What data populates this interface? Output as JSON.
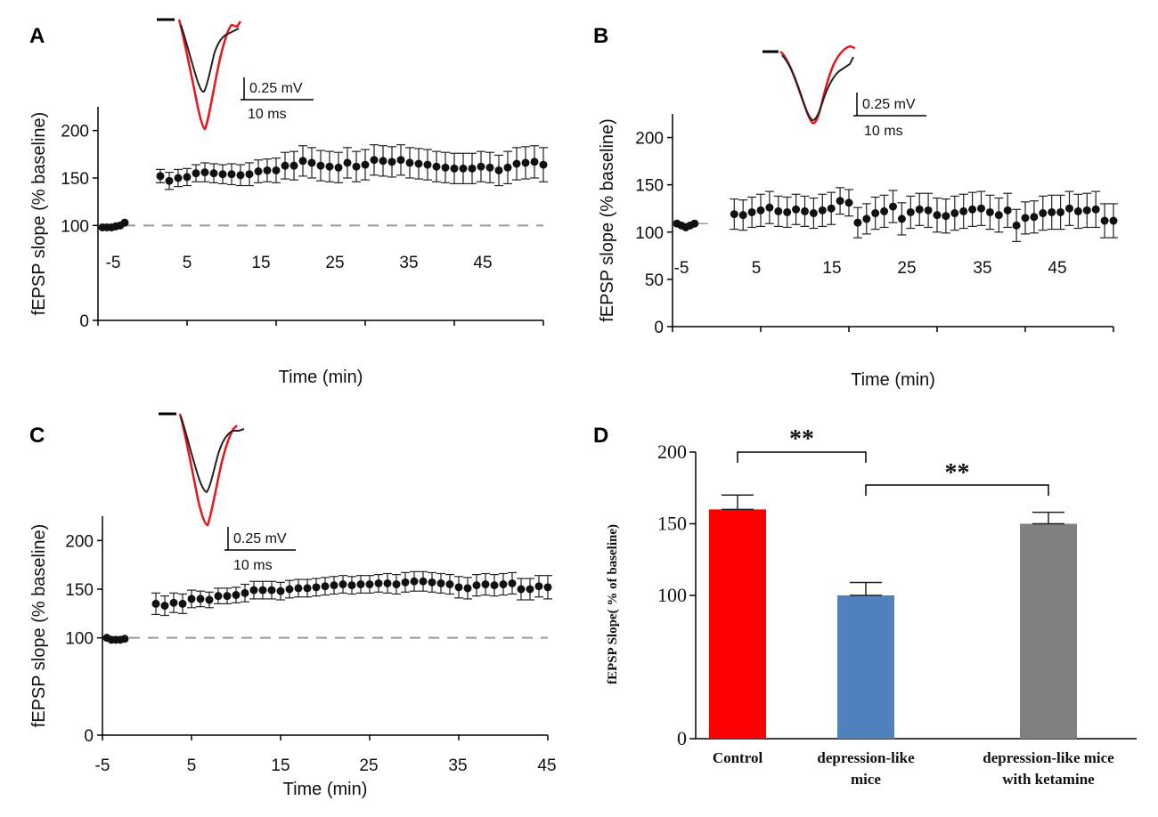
{
  "panels": {
    "A": "A",
    "B": "B",
    "C": "C",
    "D": "D"
  },
  "scale_bar": {
    "voltage": "0.25 mV",
    "time": "10 ms"
  },
  "trace_colors": {
    "pre": "#222222",
    "post": "#e8141c"
  },
  "chart_data": [
    {
      "panel": "A",
      "type": "scatter",
      "xlabel": "Time (min)",
      "ylabel": "fEPSP slope (% baseline)",
      "xlim": [
        -5,
        45
      ],
      "ylim": [
        0,
        225
      ],
      "xticks": [
        "-5",
        "5",
        "15",
        "25",
        "35",
        "45"
      ],
      "yticks": [
        "0",
        "100",
        "150",
        "200"
      ],
      "baseline_line": 100,
      "series": [
        {
          "name": "pre",
          "x": [
            -4.5,
            -4.0,
            -3.5,
            -3.0,
            -2.5,
            -2.0
          ],
          "y": [
            98,
            98,
            98,
            99,
            100,
            103
          ],
          "err": [
            0,
            0,
            0,
            0,
            0,
            0
          ]
        },
        {
          "name": "post",
          "x": [
            2,
            3,
            4,
            5,
            6,
            7,
            8,
            9,
            10,
            11,
            12,
            13,
            14,
            15,
            16,
            17,
            18,
            19,
            20,
            21,
            22,
            23,
            24,
            25,
            26,
            27,
            28,
            29,
            30,
            31,
            32,
            33,
            34,
            35,
            36,
            37,
            38,
            39,
            40,
            41,
            42,
            43,
            44,
            45
          ],
          "y": [
            152,
            147,
            150,
            151,
            155,
            156,
            155,
            154,
            154,
            153,
            154,
            157,
            158,
            158,
            163,
            163,
            168,
            166,
            163,
            162,
            161,
            166,
            162,
            164,
            169,
            168,
            167,
            169,
            166,
            165,
            164,
            162,
            161,
            160,
            160,
            160,
            162,
            161,
            158,
            161,
            165,
            166,
            167,
            164
          ],
          "err": [
            7,
            9,
            9,
            9,
            9,
            10,
            10,
            10,
            11,
            11,
            12,
            12,
            12,
            13,
            14,
            15,
            16,
            16,
            16,
            16,
            16,
            16,
            16,
            16,
            16,
            16,
            16,
            16,
            16,
            16,
            16,
            16,
            16,
            16,
            16,
            16,
            16,
            16,
            16,
            17,
            17,
            17,
            17,
            18
          ]
        }
      ]
    },
    {
      "panel": "B",
      "type": "scatter",
      "xlabel": "Time (min)",
      "ylabel": "fEPSP slope (% baseline)",
      "xlim": [
        -5,
        45
      ],
      "ylim": [
        0,
        225
      ],
      "xticks": [
        "-5",
        "5",
        "15",
        "25",
        "35",
        "45"
      ],
      "yticks": [
        "0",
        "50",
        "100",
        "150",
        "200"
      ],
      "baseline_line": 109,
      "series": [
        {
          "name": "pre",
          "x": [
            -4.5,
            -4.0,
            -3.5,
            -3.0,
            -2.5
          ],
          "y": [
            109,
            107,
            105,
            107,
            109
          ],
          "err": [
            0,
            0,
            0,
            0,
            0
          ]
        },
        {
          "name": "post",
          "x": [
            2,
            3,
            4,
            5,
            6,
            7,
            8,
            9,
            10,
            11,
            12,
            13,
            14,
            15,
            16,
            17,
            18,
            19,
            20,
            21,
            22,
            23,
            24,
            25,
            26,
            27,
            28,
            29,
            30,
            31,
            32,
            33,
            34,
            35,
            36,
            37,
            38,
            39,
            40,
            41,
            42,
            43,
            44,
            45
          ],
          "y": [
            119,
            118,
            121,
            123,
            126,
            122,
            121,
            124,
            122,
            120,
            123,
            125,
            133,
            131,
            110,
            114,
            120,
            122,
            127,
            114,
            121,
            124,
            123,
            118,
            117,
            120,
            122,
            124,
            125,
            121,
            118,
            123,
            107,
            115,
            116,
            120,
            121,
            121,
            125,
            122,
            123,
            124,
            112,
            112
          ],
          "err": [
            16,
            16,
            16,
            17,
            17,
            16,
            16,
            16,
            16,
            16,
            17,
            17,
            14,
            14,
            16,
            16,
            17,
            17,
            17,
            17,
            17,
            17,
            18,
            18,
            18,
            18,
            18,
            18,
            18,
            18,
            18,
            18,
            17,
            17,
            17,
            18,
            18,
            18,
            18,
            18,
            18,
            19,
            18,
            18
          ]
        }
      ]
    },
    {
      "panel": "C",
      "type": "scatter",
      "xlabel": "Time (min)",
      "ylabel": "fEPSP slope (% baseline)",
      "xlim": [
        -5,
        45
      ],
      "ylim": [
        0,
        225
      ],
      "xticks": [
        "-5",
        "5",
        "15",
        "25",
        "35",
        "45"
      ],
      "yticks": [
        "0",
        "100",
        "150",
        "200"
      ],
      "baseline_line": 100,
      "series": [
        {
          "name": "pre",
          "x": [
            -4.5,
            -4.0,
            -3.5,
            -3.0,
            -2.5
          ],
          "y": [
            100,
            98,
            98,
            98,
            99
          ],
          "err": [
            0,
            0,
            0,
            0,
            0
          ]
        },
        {
          "name": "post",
          "x": [
            1,
            2,
            3,
            4,
            5,
            6,
            7,
            8,
            9,
            10,
            11,
            12,
            13,
            14,
            15,
            16,
            17,
            18,
            19,
            20,
            21,
            22,
            23,
            24,
            25,
            26,
            27,
            28,
            29,
            30,
            31,
            32,
            33,
            34,
            35,
            36,
            37,
            38,
            39,
            40,
            41,
            42,
            43,
            44,
            45
          ],
          "y": [
            135,
            133,
            136,
            135,
            140,
            140,
            139,
            143,
            143,
            144,
            146,
            149,
            149,
            149,
            148,
            150,
            151,
            151,
            152,
            153,
            154,
            155,
            154,
            155,
            155,
            156,
            156,
            155,
            157,
            158,
            158,
            157,
            156,
            155,
            152,
            151,
            154,
            155,
            154,
            155,
            156,
            150,
            150,
            153,
            152
          ],
          "err": [
            11,
            10,
            10,
            10,
            9,
            8,
            8,
            8,
            8,
            8,
            9,
            9,
            9,
            9,
            9,
            9,
            9,
            9,
            9,
            9,
            9,
            9,
            9,
            9,
            9,
            9,
            10,
            10,
            10,
            10,
            10,
            10,
            10,
            10,
            11,
            11,
            11,
            11,
            11,
            11,
            11,
            11,
            11,
            11,
            12
          ]
        }
      ]
    },
    {
      "panel": "D",
      "type": "bar",
      "ylabel": "fEPSP Slope( % of  baseline)",
      "ylim": [
        0,
        200
      ],
      "yticks": [
        "0",
        "100",
        "150",
        "200"
      ],
      "categories": [
        "Control",
        "depression-like mice",
        "depression-like mice with ketamine"
      ],
      "category_lines": [
        [
          "Control"
        ],
        [
          "depression-like",
          "mice"
        ],
        [
          "depression-like mice",
          "with ketamine"
        ]
      ],
      "values": [
        160,
        100,
        150
      ],
      "errors": [
        10,
        9,
        8
      ],
      "colors": [
        "#ff0000",
        "#4f81bd",
        "#808080"
      ],
      "significance": [
        {
          "from": 0,
          "to": 1,
          "label": "**"
        },
        {
          "from": 1,
          "to": 2,
          "label": "**"
        }
      ]
    }
  ]
}
